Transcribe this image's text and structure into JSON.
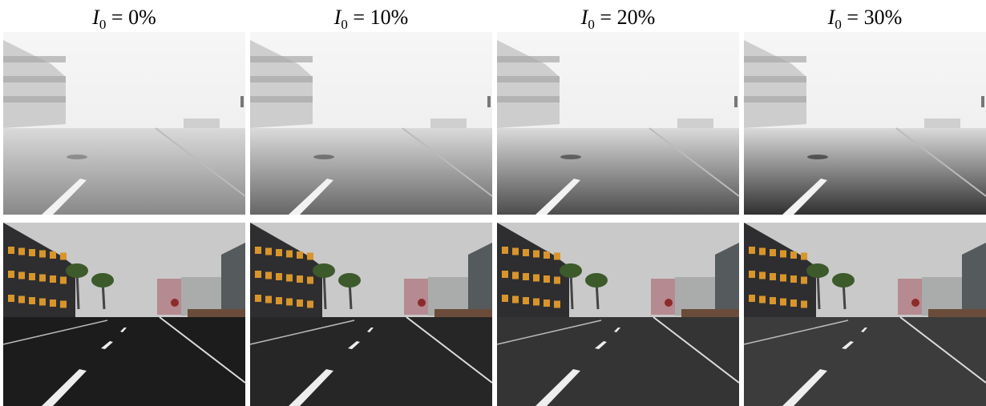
{
  "columns": [
    {
      "symbol": "I",
      "subscript": "0",
      "equation": " = 0%"
    },
    {
      "symbol": "I",
      "subscript": "0",
      "equation": " = 10%"
    },
    {
      "symbol": "I",
      "subscript": "0",
      "equation": " = 20%"
    },
    {
      "symbol": "I",
      "subscript": "0",
      "equation": " = 30%"
    }
  ]
}
